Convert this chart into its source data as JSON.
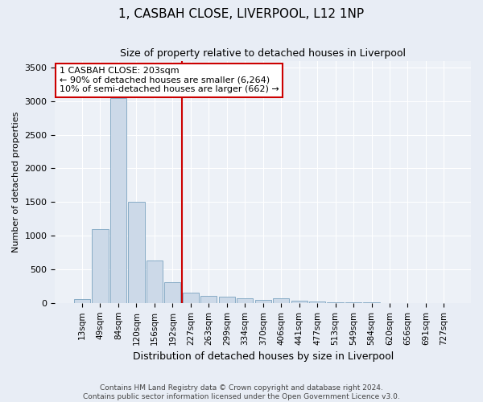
{
  "title": "1, CASBAH CLOSE, LIVERPOOL, L12 1NP",
  "subtitle": "Size of property relative to detached houses in Liverpool",
  "xlabel": "Distribution of detached houses by size in Liverpool",
  "ylabel": "Number of detached properties",
  "categories": [
    "13sqm",
    "49sqm",
    "84sqm",
    "120sqm",
    "156sqm",
    "192sqm",
    "227sqm",
    "263sqm",
    "299sqm",
    "334sqm",
    "370sqm",
    "406sqm",
    "441sqm",
    "477sqm",
    "513sqm",
    "549sqm",
    "584sqm",
    "620sqm",
    "656sqm",
    "691sqm",
    "727sqm"
  ],
  "values": [
    60,
    1100,
    3050,
    1500,
    630,
    310,
    155,
    110,
    90,
    65,
    50,
    70,
    35,
    25,
    15,
    10,
    5,
    3,
    2,
    1,
    1
  ],
  "bar_color": "#ccd9e8",
  "bar_edge_color": "#7ba3c0",
  "vline_x": 6.0,
  "vline_color": "#cc0000",
  "annotation_text": "1 CASBAH CLOSE: 203sqm\n← 90% of detached houses are smaller (6,264)\n10% of semi-detached houses are larger (662) →",
  "annotation_box_color": "#ffffff",
  "annotation_box_edge": "#cc0000",
  "ylim": [
    0,
    3600
  ],
  "yticks": [
    0,
    500,
    1000,
    1500,
    2000,
    2500,
    3000,
    3500
  ],
  "footer1": "Contains HM Land Registry data © Crown copyright and database right 2024.",
  "footer2": "Contains public sector information licensed under the Open Government Licence v3.0.",
  "bg_color": "#e8edf5",
  "plot_bg": "#edf1f7",
  "title_fontsize": 11,
  "subtitle_fontsize": 9,
  "ylabel_fontsize": 8,
  "xlabel_fontsize": 9,
  "tick_fontsize": 7.5,
  "ytick_fontsize": 8,
  "annotation_fontsize": 8
}
